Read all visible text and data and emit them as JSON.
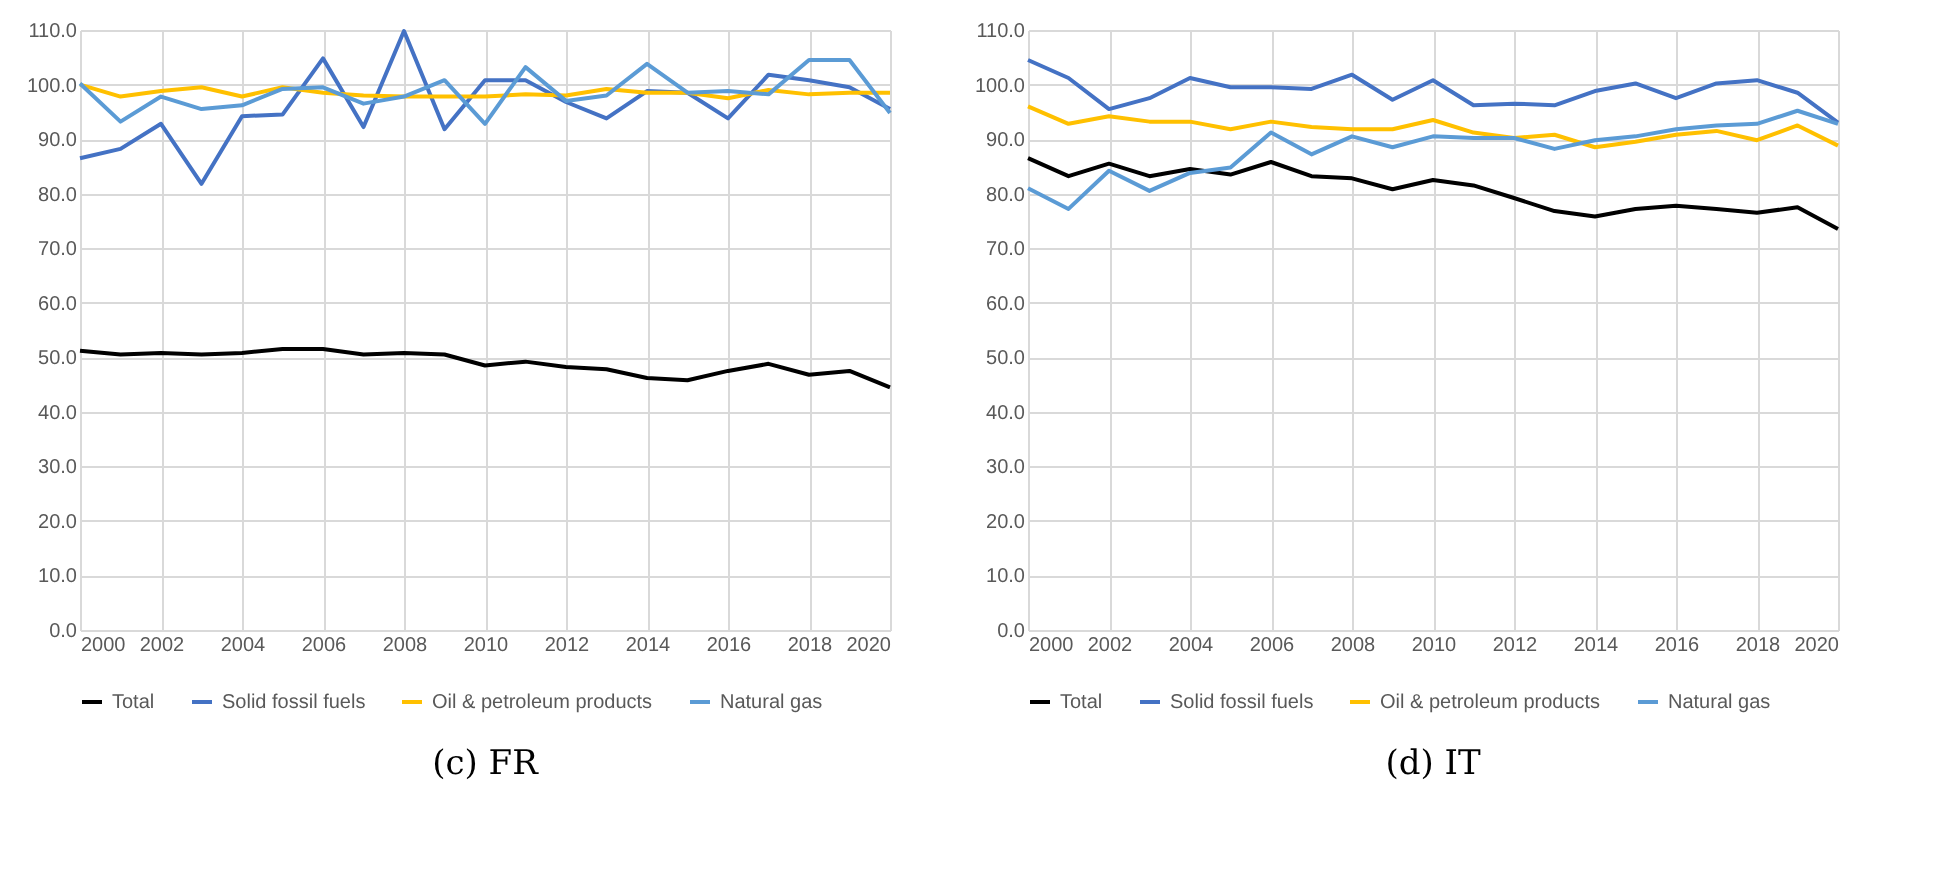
{
  "chart_data": [
    {
      "type": "line",
      "title": "(c) FR",
      "x": [
        2000,
        2001,
        2002,
        2003,
        2004,
        2005,
        2006,
        2007,
        2008,
        2009,
        2010,
        2011,
        2012,
        2013,
        2014,
        2015,
        2016,
        2017,
        2018,
        2019,
        2020
      ],
      "series": [
        {
          "name": "Total",
          "color": "#000000",
          "values": [
            51.2,
            50.5,
            50.8,
            50.5,
            50.8,
            51.5,
            51.5,
            50.5,
            50.8,
            50.5,
            48.5,
            49.2,
            48.2,
            47.8,
            46.2,
            45.8,
            47.5,
            48.8,
            46.8,
            47.5,
            44.5
          ]
        },
        {
          "name": "Solid fossil fuels",
          "color": "#4472c4",
          "values": [
            86.5,
            88.2,
            92.8,
            81.8,
            94.2,
            94.5,
            104.8,
            92.2,
            109.8,
            91.8,
            100.8,
            100.8,
            96.8,
            93.8,
            98.8,
            98.5,
            93.8,
            101.8,
            100.8,
            99.5,
            95.5
          ]
        },
        {
          "name": "Oil & petroleum products",
          "color": "#ffc000",
          "values": [
            100.0,
            97.8,
            98.8,
            99.5,
            97.8,
            99.5,
            98.5,
            98.0,
            97.8,
            97.8,
            97.8,
            98.2,
            98.0,
            99.2,
            98.5,
            98.5,
            97.5,
            99.0,
            98.2,
            98.5,
            98.5
          ]
        },
        {
          "name": "Natural gas",
          "color": "#5b9bd5",
          "values": [
            100.2,
            93.2,
            97.8,
            95.5,
            96.2,
            99.2,
            99.5,
            96.5,
            97.8,
            100.8,
            92.8,
            103.2,
            97.0,
            98.0,
            103.8,
            98.5,
            98.8,
            98.2,
            104.5,
            104.5,
            94.8
          ]
        }
      ],
      "xlim": [
        2000,
        2020
      ],
      "xticks": [
        2000,
        2002,
        2004,
        2006,
        2008,
        2010,
        2012,
        2014,
        2016,
        2018,
        2020
      ],
      "ylim": [
        0,
        110
      ],
      "yticks": [
        {
          "value": 0,
          "label": "0.0"
        },
        {
          "value": 10,
          "label": "10.0"
        },
        {
          "value": 20,
          "label": "20.0"
        },
        {
          "value": 30,
          "label": "30.0"
        },
        {
          "value": 40,
          "label": "40.0"
        },
        {
          "value": 50,
          "label": "50.0"
        },
        {
          "value": 60,
          "label": "60.0"
        },
        {
          "value": 70,
          "label": "70.0"
        },
        {
          "value": 80,
          "label": "80.0"
        },
        {
          "value": 90,
          "label": "90.0"
        },
        {
          "value": 100,
          "label": "100.0"
        },
        {
          "value": 110,
          "label": "110.0"
        }
      ],
      "grid": true,
      "legend": "bottom"
    },
    {
      "type": "line",
      "title": "(d) IT",
      "x": [
        2000,
        2001,
        2002,
        2003,
        2004,
        2005,
        2006,
        2007,
        2008,
        2009,
        2010,
        2011,
        2012,
        2013,
        2014,
        2015,
        2016,
        2017,
        2018,
        2019,
        2020
      ],
      "series": [
        {
          "name": "Total",
          "color": "#000000",
          "values": [
            86.5,
            83.2,
            85.5,
            83.2,
            84.5,
            83.5,
            85.8,
            83.2,
            82.8,
            80.8,
            82.5,
            81.5,
            79.2,
            76.8,
            75.8,
            77.2,
            77.8,
            77.2,
            76.5,
            77.5,
            73.5
          ]
        },
        {
          "name": "Solid fossil fuels",
          "color": "#4472c4",
          "values": [
            104.5,
            101.2,
            95.5,
            97.5,
            101.2,
            99.5,
            99.5,
            99.2,
            101.8,
            97.2,
            100.8,
            96.2,
            96.5,
            96.2,
            98.8,
            100.2,
            97.5,
            100.2,
            100.8,
            98.5,
            93.0
          ]
        },
        {
          "name": "Oil & petroleum products",
          "color": "#ffc000",
          "values": [
            96.0,
            92.8,
            94.2,
            93.2,
            93.2,
            91.8,
            93.2,
            92.2,
            91.8,
            91.8,
            93.5,
            91.2,
            90.2,
            90.8,
            88.5,
            89.5,
            90.8,
            91.5,
            89.8,
            92.5,
            88.8
          ]
        },
        {
          "name": "Natural gas",
          "color": "#5b9bd5",
          "values": [
            81.0,
            77.2,
            84.2,
            80.5,
            83.8,
            84.8,
            91.2,
            87.2,
            90.5,
            88.5,
            90.5,
            90.2,
            90.2,
            88.2,
            89.8,
            90.5,
            91.8,
            92.5,
            92.8,
            95.2,
            92.8
          ]
        }
      ],
      "xlim": [
        2000,
        2020
      ],
      "xticks": [
        2000,
        2002,
        2004,
        2006,
        2008,
        2010,
        2012,
        2014,
        2016,
        2018,
        2020
      ],
      "ylim": [
        0,
        110
      ],
      "yticks": [
        {
          "value": 0,
          "label": "0.0"
        },
        {
          "value": 10,
          "label": "10.0"
        },
        {
          "value": 20,
          "label": "20.0"
        },
        {
          "value": 30,
          "label": "30.0"
        },
        {
          "value": 40,
          "label": "40.0"
        },
        {
          "value": 50,
          "label": "50.0"
        },
        {
          "value": 60,
          "label": "60.0"
        },
        {
          "value": 70,
          "label": "70.0"
        },
        {
          "value": 80,
          "label": "80.0"
        },
        {
          "value": 90,
          "label": "90.0"
        },
        {
          "value": 100,
          "label": "100.0"
        },
        {
          "value": 110,
          "label": "110.0"
        }
      ],
      "grid": true,
      "legend": "bottom"
    }
  ]
}
